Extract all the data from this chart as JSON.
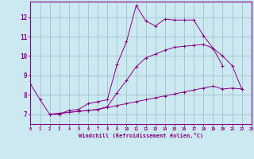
{
  "xlabel": "Windchill (Refroidissement éolien,°C)",
  "xlim": [
    0,
    23
  ],
  "ylim": [
    6.5,
    12.8
  ],
  "background_color": "#cce8f0",
  "line_color": "#880088",
  "grid_color": "#99bbcc",
  "x_ticks": [
    0,
    1,
    2,
    3,
    4,
    5,
    6,
    7,
    8,
    9,
    10,
    11,
    12,
    13,
    14,
    15,
    16,
    17,
    18,
    19,
    20,
    21,
    22,
    23
  ],
  "y_ticks": [
    7,
    8,
    9,
    10,
    11,
    12
  ],
  "series": [
    {
      "x": [
        0,
        1,
        2,
        3,
        4,
        5,
        6,
        7,
        8,
        9,
        10,
        11,
        12,
        13,
        14,
        15,
        16,
        17,
        18,
        19,
        20,
        21,
        22
      ],
      "y": [
        8.55,
        7.75,
        7.0,
        7.0,
        7.2,
        7.25,
        7.55,
        7.65,
        7.75,
        9.55,
        10.75,
        12.6,
        11.8,
        11.55,
        11.9,
        11.85,
        11.85,
        11.85,
        11.05,
        10.4,
        10.0,
        9.5,
        8.3
      ]
    },
    {
      "x": [
        2,
        3,
        4,
        5,
        6,
        7,
        8,
        9,
        10,
        11,
        12,
        13,
        14,
        15,
        16,
        17,
        18,
        19,
        20,
        21,
        22
      ],
      "y": [
        7.0,
        7.05,
        7.1,
        7.15,
        7.2,
        7.25,
        7.35,
        7.45,
        7.55,
        7.65,
        7.75,
        7.85,
        7.95,
        8.05,
        8.15,
        8.25,
        8.35,
        8.45,
        8.3,
        8.35,
        8.3
      ]
    },
    {
      "x": [
        2,
        3,
        4,
        5,
        6,
        7,
        8,
        9,
        10,
        11,
        12,
        13,
        14,
        15,
        16,
        17,
        18,
        19,
        20
      ],
      "y": [
        7.0,
        7.05,
        7.1,
        7.15,
        7.2,
        7.25,
        7.4,
        8.1,
        8.75,
        9.45,
        9.9,
        10.1,
        10.3,
        10.45,
        10.5,
        10.55,
        10.6,
        10.4,
        9.5
      ]
    }
  ]
}
